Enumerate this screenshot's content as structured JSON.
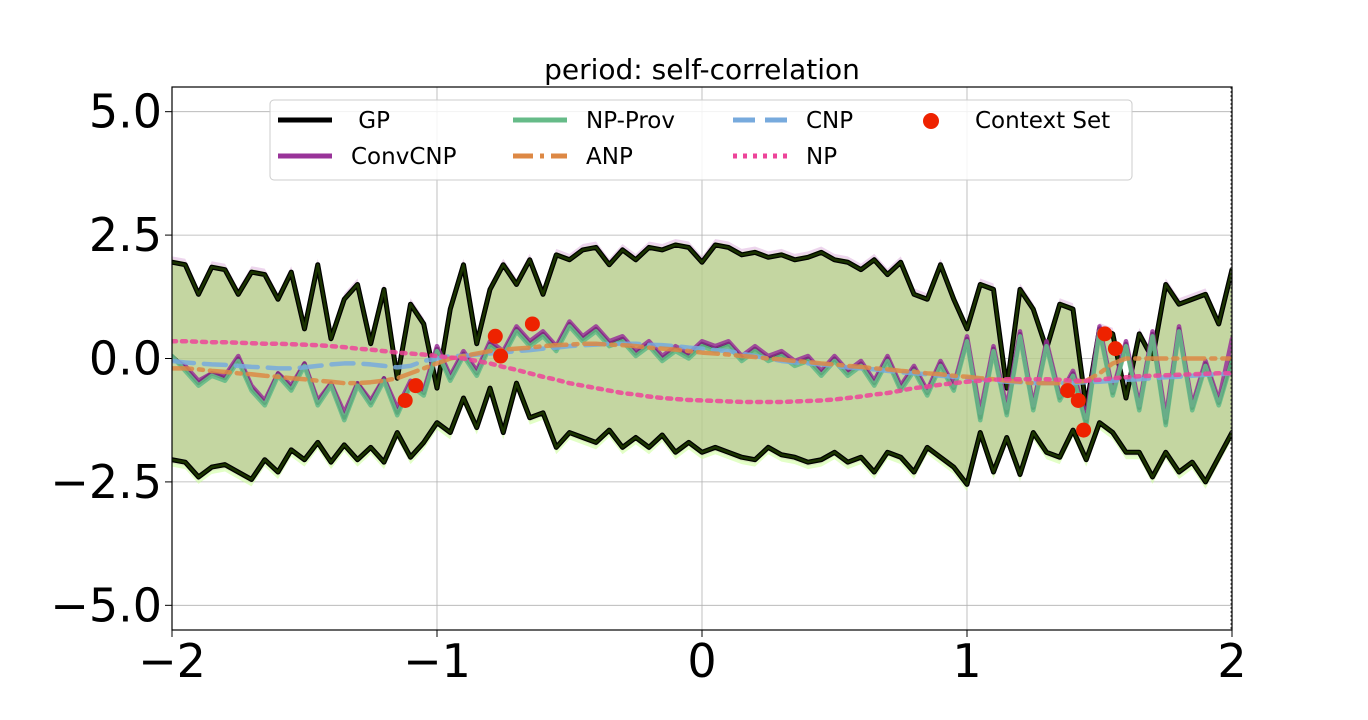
{
  "chart_data": {
    "type": "line",
    "title": "period: self-correlation",
    "xlabel": "",
    "ylabel": "",
    "xlim": [
      -2,
      2
    ],
    "ylim": [
      -5.5,
      5.5
    ],
    "grid": true,
    "legend_position": "top",
    "x_ticks": [
      -2,
      -1,
      0,
      1,
      2
    ],
    "x_tick_labels": [
      "−2",
      "−1",
      "0",
      "1",
      "2"
    ],
    "y_ticks": [
      5.0,
      2.5,
      0.0,
      -2.5,
      -5.0
    ],
    "y_tick_labels": [
      "5.0",
      "2.5",
      "0.0",
      "−2.5",
      "−5.0"
    ],
    "series": [
      {
        "name": "GP",
        "color": "#000000",
        "style": "solid",
        "x": [
          -2,
          -1.95,
          -1.9,
          -1.85,
          -1.8,
          -1.75,
          -1.7,
          -1.65,
          -1.6,
          -1.55,
          -1.5,
          -1.45,
          -1.4,
          -1.35,
          -1.3,
          -1.25,
          -1.2,
          -1.15,
          -1.1,
          -1.05,
          -1,
          -0.95,
          -0.9,
          -0.85,
          -0.8,
          -0.75,
          -0.7,
          -0.65,
          -0.6,
          -0.55,
          -0.5,
          -0.45,
          -0.4,
          -0.35,
          -0.3,
          -0.25,
          -0.2,
          -0.15,
          -0.1,
          -0.05,
          0,
          0.05,
          0.1,
          0.15,
          0.2,
          0.25,
          0.3,
          0.35,
          0.4,
          0.45,
          0.5,
          0.55,
          0.6,
          0.65,
          0.7,
          0.75,
          0.8,
          0.85,
          0.9,
          0.95,
          1,
          1.05,
          1.1,
          1.15,
          1.2,
          1.25,
          1.3,
          1.35,
          1.4,
          1.45,
          1.5,
          1.55,
          1.6,
          1.65,
          1.7,
          1.75,
          1.8,
          1.85,
          1.9,
          1.95,
          2
        ],
        "mean": [
          0.05,
          -0.2,
          -0.5,
          -0.3,
          -0.4,
          0.0,
          -0.6,
          -0.9,
          -0.3,
          -0.6,
          -0.1,
          -0.9,
          -0.5,
          -1.2,
          -0.5,
          -0.9,
          -0.4,
          -1.1,
          -0.5,
          -0.7,
          0.2,
          -0.4,
          0.1,
          -0.3,
          0.3,
          0.1,
          0.6,
          0.3,
          0.5,
          0.2,
          0.7,
          0.4,
          0.6,
          0.3,
          0.4,
          0.1,
          0.3,
          0.0,
          0.2,
          0.05,
          0.3,
          0.2,
          0.3,
          0.0,
          0.2,
          0.0,
          0.1,
          -0.1,
          0.0,
          -0.3,
          0.0,
          -0.3,
          -0.1,
          -0.5,
          0.0,
          -0.6,
          -0.2,
          -0.7,
          -0.1,
          -0.6,
          0.4,
          -1.2,
          0.2,
          -1.1,
          0.5,
          -1.0,
          0.3,
          -0.8,
          -0.3,
          -1.3,
          0.6,
          -0.7,
          0.3,
          -1.0,
          0.5,
          -1.3,
          0.6,
          -1.0,
          -0.1,
          -0.9,
          0.0
        ],
        "lower": [
          -2.05,
          -2.1,
          -2.4,
          -2.2,
          -2.15,
          -2.3,
          -2.45,
          -2.05,
          -2.3,
          -1.85,
          -2.05,
          -1.7,
          -2.1,
          -1.75,
          -2.05,
          -1.8,
          -2.1,
          -1.5,
          -2.0,
          -1.7,
          -1.3,
          -1.5,
          -0.8,
          -1.4,
          -0.6,
          -1.5,
          -0.5,
          -1.2,
          -1.1,
          -1.8,
          -1.5,
          -1.6,
          -1.7,
          -1.45,
          -1.8,
          -1.6,
          -1.8,
          -1.55,
          -1.9,
          -1.7,
          -1.9,
          -1.8,
          -1.9,
          -2.0,
          -2.05,
          -1.8,
          -1.95,
          -2.0,
          -2.1,
          -2.05,
          -1.9,
          -2.1,
          -2.0,
          -2.3,
          -1.9,
          -2.0,
          -2.3,
          -1.8,
          -2.0,
          -2.2,
          -2.55,
          -1.5,
          -2.3,
          -1.6,
          -2.35,
          -1.5,
          -1.9,
          -2.0,
          -1.45,
          -2.05,
          -1.3,
          -1.5,
          -1.9,
          -1.9,
          -2.4,
          -1.9,
          -2.3,
          -2.1,
          -2.5,
          -2.0,
          -1.5
        ],
        "upper": [
          1.95,
          1.9,
          1.3,
          1.85,
          1.8,
          1.3,
          1.75,
          1.7,
          1.2,
          1.75,
          0.6,
          1.9,
          0.4,
          1.2,
          1.5,
          0.3,
          1.4,
          -0.4,
          1.1,
          0.7,
          -0.6,
          1.0,
          1.9,
          0.3,
          1.4,
          1.9,
          1.5,
          2.0,
          1.3,
          2.1,
          2.0,
          2.2,
          2.25,
          1.9,
          2.2,
          2.0,
          2.25,
          2.2,
          2.3,
          2.25,
          1.95,
          2.3,
          2.25,
          2.1,
          2.15,
          2.05,
          2.1,
          2.0,
          2.05,
          2.15,
          2.0,
          1.95,
          1.8,
          2.0,
          1.7,
          1.95,
          1.3,
          1.2,
          1.9,
          1.2,
          0.6,
          1.5,
          1.4,
          -0.6,
          1.4,
          1.0,
          0.2,
          1.1,
          1.0,
          -1.0,
          0.6,
          0.5,
          -0.8,
          0.5,
          0.0,
          1.5,
          1.1,
          1.2,
          1.3,
          0.7,
          1.8
        ]
      },
      {
        "name": "ConvCNP",
        "color": "#993399",
        "style": "solid",
        "mean": [
          0.0,
          -0.15,
          -0.45,
          -0.3,
          -0.35,
          0.05,
          -0.55,
          -0.85,
          -0.3,
          -0.55,
          -0.1,
          -0.85,
          -0.5,
          -1.1,
          -0.5,
          -0.85,
          -0.4,
          -1.0,
          -0.45,
          -0.65,
          0.25,
          -0.35,
          0.15,
          -0.25,
          0.35,
          0.15,
          0.65,
          0.35,
          0.55,
          0.25,
          0.75,
          0.45,
          0.65,
          0.35,
          0.45,
          0.15,
          0.35,
          0.05,
          0.25,
          0.1,
          0.35,
          0.25,
          0.35,
          0.05,
          0.25,
          0.05,
          0.15,
          -0.05,
          0.05,
          -0.25,
          0.05,
          -0.25,
          -0.05,
          -0.45,
          0.05,
          -0.55,
          -0.15,
          -0.65,
          -0.05,
          -0.55,
          0.45,
          -1.1,
          0.25,
          -1.0,
          0.55,
          -0.95,
          0.35,
          -0.75,
          -0.25,
          -1.2,
          0.65,
          -0.65,
          0.35,
          -0.95,
          0.55,
          -1.2,
          0.65,
          -0.95,
          -0.05,
          -0.85,
          0.4
        ]
      },
      {
        "name": "NP-Prov",
        "color": "#66bb88",
        "style": "solid",
        "mean": [
          0.05,
          -0.25,
          -0.55,
          -0.35,
          -0.45,
          -0.05,
          -0.65,
          -0.95,
          -0.35,
          -0.65,
          -0.15,
          -0.95,
          -0.55,
          -1.25,
          -0.55,
          -0.95,
          -0.45,
          -1.15,
          -0.55,
          -0.75,
          0.15,
          -0.45,
          0.05,
          -0.35,
          0.25,
          0.05,
          0.55,
          0.25,
          0.45,
          0.15,
          0.65,
          0.35,
          0.55,
          0.25,
          0.35,
          0.05,
          0.25,
          -0.05,
          0.15,
          0.0,
          0.25,
          0.15,
          0.25,
          -0.05,
          0.15,
          -0.05,
          0.05,
          -0.15,
          -0.05,
          -0.35,
          -0.05,
          -0.35,
          -0.15,
          -0.55,
          -0.05,
          -0.65,
          -0.25,
          -0.75,
          -0.15,
          -0.65,
          0.35,
          -1.25,
          0.15,
          -1.15,
          0.45,
          -1.05,
          0.25,
          -0.85,
          -0.35,
          -1.35,
          0.55,
          -0.75,
          0.25,
          -1.05,
          0.45,
          -1.35,
          0.55,
          -1.05,
          -0.15,
          -0.95,
          -0.05
        ]
      },
      {
        "name": "CNP",
        "color": "#77aadd",
        "style": "dashed",
        "mean": [
          -0.05,
          -0.08,
          -0.1,
          -0.12,
          -0.13,
          -0.15,
          -0.17,
          -0.18,
          -0.2,
          -0.2,
          -0.18,
          -0.15,
          -0.12,
          -0.1,
          -0.1,
          -0.12,
          -0.15,
          -0.18,
          -0.15,
          -0.05,
          0.0,
          0.05,
          0.05,
          0.08,
          0.1,
          0.12,
          0.15,
          0.17,
          0.2,
          0.22,
          0.25,
          0.27,
          0.28,
          0.3,
          0.3,
          0.3,
          0.28,
          0.27,
          0.25,
          0.22,
          0.2,
          0.17,
          0.15,
          0.1,
          0.05,
          0.0,
          -0.05,
          -0.08,
          -0.1,
          -0.12,
          -0.15,
          -0.18,
          -0.2,
          -0.22,
          -0.25,
          -0.28,
          -0.3,
          -0.32,
          -0.35,
          -0.37,
          -0.4,
          -0.42,
          -0.45,
          -0.47,
          -0.48,
          -0.5,
          -0.5,
          -0.5,
          -0.5,
          -0.48,
          -0.47,
          -0.45,
          -0.43,
          -0.42,
          -0.4,
          -0.38,
          -0.37,
          -0.35,
          -0.33,
          -0.32,
          -0.3
        ]
      },
      {
        "name": "ANP",
        "color": "#dd8844",
        "style": "dashdot",
        "mean": [
          -0.2,
          -0.2,
          -0.22,
          -0.25,
          -0.27,
          -0.3,
          -0.32,
          -0.35,
          -0.37,
          -0.4,
          -0.42,
          -0.45,
          -0.47,
          -0.5,
          -0.5,
          -0.48,
          -0.45,
          -0.4,
          -0.3,
          -0.2,
          -0.1,
          0.0,
          0.05,
          0.1,
          0.15,
          0.18,
          0.2,
          0.22,
          0.25,
          0.27,
          0.28,
          0.3,
          0.3,
          0.28,
          0.27,
          0.25,
          0.22,
          0.2,
          0.18,
          0.15,
          0.12,
          0.1,
          0.08,
          0.05,
          0.03,
          0.0,
          -0.02,
          -0.05,
          -0.07,
          -0.1,
          -0.12,
          -0.15,
          -0.17,
          -0.2,
          -0.22,
          -0.25,
          -0.27,
          -0.3,
          -0.32,
          -0.35,
          -0.37,
          -0.4,
          -0.42,
          -0.45,
          -0.47,
          -0.5,
          -0.5,
          -0.5,
          -0.48,
          -0.45,
          -0.3,
          -0.1,
          0.0,
          0.0,
          0.0,
          0.0,
          0.0,
          0.0,
          0.0,
          0.0,
          0.0
        ]
      },
      {
        "name": "NP",
        "color": "#ee4499",
        "style": "dotted",
        "mean": [
          0.35,
          0.35,
          0.34,
          0.33,
          0.33,
          0.32,
          0.31,
          0.3,
          0.3,
          0.29,
          0.28,
          0.27,
          0.25,
          0.23,
          0.2,
          0.18,
          0.15,
          0.12,
          0.1,
          0.08,
          0.05,
          0.02,
          0.0,
          -0.05,
          -0.1,
          -0.17,
          -0.23,
          -0.3,
          -0.37,
          -0.43,
          -0.5,
          -0.55,
          -0.6,
          -0.65,
          -0.7,
          -0.73,
          -0.77,
          -0.8,
          -0.82,
          -0.84,
          -0.85,
          -0.86,
          -0.87,
          -0.88,
          -0.88,
          -0.88,
          -0.88,
          -0.87,
          -0.86,
          -0.85,
          -0.83,
          -0.8,
          -0.77,
          -0.73,
          -0.7,
          -0.65,
          -0.6,
          -0.57,
          -0.53,
          -0.5,
          -0.47,
          -0.45,
          -0.43,
          -0.42,
          -0.42,
          -0.42,
          -0.42,
          -0.43,
          -0.45,
          -0.45,
          -0.43,
          -0.4,
          -0.38,
          -0.36,
          -0.35,
          -0.34,
          -0.33,
          -0.32,
          -0.31,
          -0.3,
          -0.3
        ]
      }
    ],
    "context_set": {
      "name": "Context Set",
      "color": "#ee2200",
      "x": [
        -1.12,
        -1.08,
        -0.78,
        -0.76,
        -0.64,
        1.38,
        1.42,
        1.44,
        1.52,
        1.56
      ],
      "y": [
        -0.85,
        -0.55,
        0.45,
        0.05,
        0.7,
        -0.65,
        -0.85,
        -1.45,
        0.5,
        0.2
      ]
    },
    "legend": [
      {
        "label": "GP",
        "color": "#000000",
        "style": "solid"
      },
      {
        "label": "ConvCNP",
        "color": "#993399",
        "style": "solid"
      },
      {
        "label": "NP-Prov",
        "color": "#66bb88",
        "style": "solid"
      },
      {
        "label": "ANP",
        "color": "#dd8844",
        "style": "dashdot"
      },
      {
        "label": "CNP",
        "color": "#77aadd",
        "style": "dashed"
      },
      {
        "label": "NP",
        "color": "#ee4499",
        "style": "dotted"
      },
      {
        "label": "Context Set",
        "color": "#ee2200",
        "style": "marker"
      }
    ]
  }
}
